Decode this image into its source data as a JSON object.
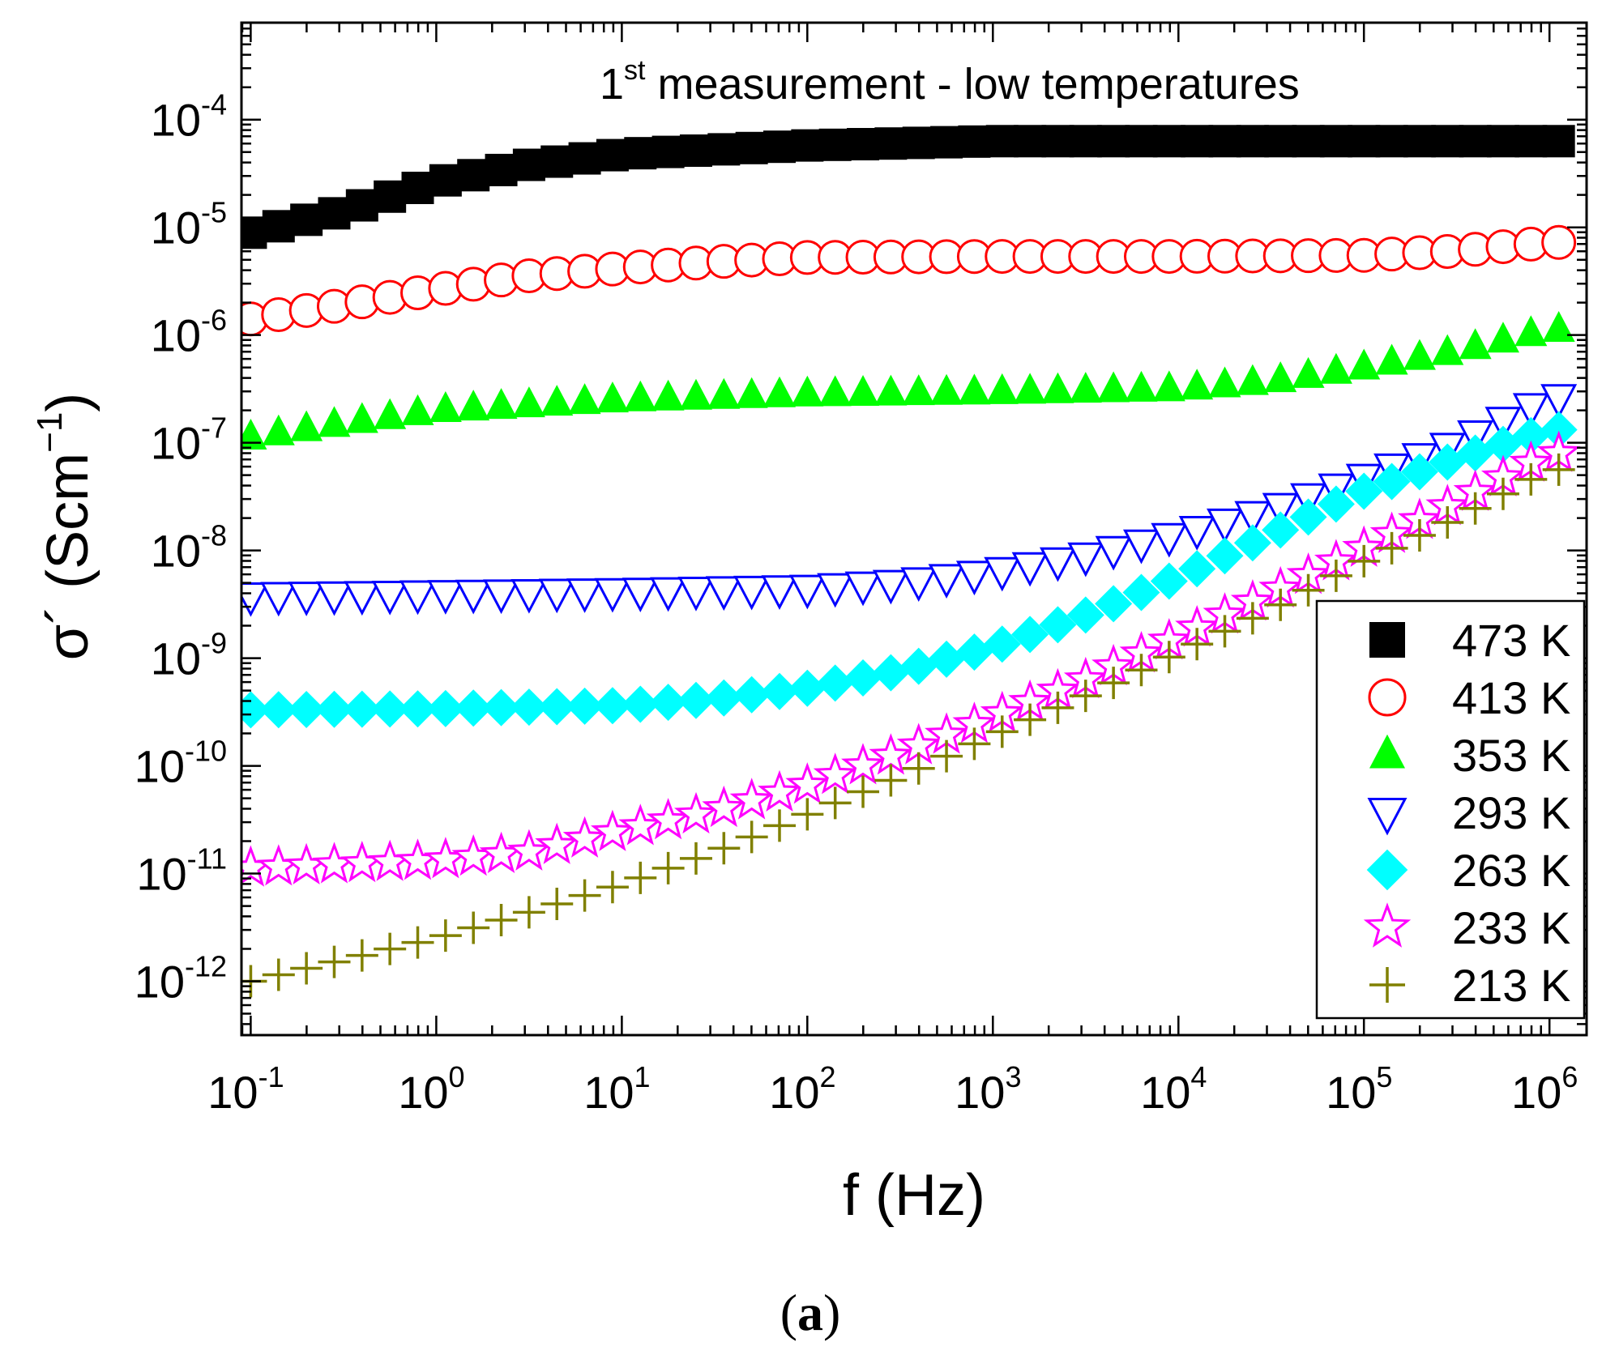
{
  "chart_data": {
    "type": "scatter",
    "title": "1st measurement - low temperatures",
    "title_main": "1",
    "title_sup": "st",
    "title_rest": " measurement - low temperatures",
    "xlabel": "f (Hz)",
    "ylabel_main": "σ´ (Scm",
    "ylabel_sup": "−1",
    "ylabel_close": ")",
    "x_scale": "log",
    "y_scale": "log",
    "xlim_log10": [
      -1.05,
      6.2
    ],
    "ylim_log10": [
      -12.5,
      -3.1
    ],
    "x_ticks": [
      {
        "exp": -1,
        "base": "10",
        "sup": "-1"
      },
      {
        "exp": 0,
        "base": "10",
        "sup": "0"
      },
      {
        "exp": 1,
        "base": "10",
        "sup": "1"
      },
      {
        "exp": 2,
        "base": "10",
        "sup": "2"
      },
      {
        "exp": 3,
        "base": "10",
        "sup": "3"
      },
      {
        "exp": 4,
        "base": "10",
        "sup": "4"
      },
      {
        "exp": 5,
        "base": "10",
        "sup": "5"
      },
      {
        "exp": 6,
        "base": "10",
        "sup": "6"
      }
    ],
    "y_ticks": [
      {
        "exp": -12,
        "base": "10",
        "sup": "-12"
      },
      {
        "exp": -11,
        "base": "10",
        "sup": "-11"
      },
      {
        "exp": -10,
        "base": "10",
        "sup": "-10"
      },
      {
        "exp": -9,
        "base": "10",
        "sup": "-9"
      },
      {
        "exp": -8,
        "base": "10",
        "sup": "-8"
      },
      {
        "exp": -7,
        "base": "10",
        "sup": "-7"
      },
      {
        "exp": -6,
        "base": "10",
        "sup": "-6"
      },
      {
        "exp": -5,
        "base": "10",
        "sup": "-5"
      },
      {
        "exp": -4,
        "base": "10",
        "sup": "-4"
      }
    ],
    "legend_position": "bottom-right",
    "x_log_start": -1.0,
    "x_log_step": 0.15,
    "series": [
      {
        "name": "473 K",
        "marker": "square-filled",
        "color": "#000000",
        "knots": [
          [
            -1,
            -5.05
          ],
          [
            -0.5,
            -4.85
          ],
          [
            0,
            -4.58
          ],
          [
            0.5,
            -4.42
          ],
          [
            1,
            -4.32
          ],
          [
            2,
            -4.24
          ],
          [
            3,
            -4.2
          ],
          [
            4,
            -4.2
          ],
          [
            5,
            -4.2
          ],
          [
            6,
            -4.2
          ]
        ]
      },
      {
        "name": "413 K",
        "marker": "circle-open",
        "color": "#ff0000",
        "knots": [
          [
            -1,
            -5.85
          ],
          [
            -0.5,
            -5.72
          ],
          [
            0,
            -5.58
          ],
          [
            0.5,
            -5.45
          ],
          [
            1,
            -5.38
          ],
          [
            1.5,
            -5.32
          ],
          [
            2,
            -5.28
          ],
          [
            3,
            -5.27
          ],
          [
            4,
            -5.27
          ],
          [
            5,
            -5.26
          ],
          [
            5.5,
            -5.22
          ],
          [
            6,
            -5.14
          ]
        ]
      },
      {
        "name": "353 K",
        "marker": "triangle-up-filled",
        "color": "#00ff00",
        "knots": [
          [
            -1,
            -6.95
          ],
          [
            -0.5,
            -6.82
          ],
          [
            0,
            -6.7
          ],
          [
            1,
            -6.6
          ],
          [
            2,
            -6.55
          ],
          [
            3,
            -6.53
          ],
          [
            4,
            -6.5
          ],
          [
            4.5,
            -6.43
          ],
          [
            5,
            -6.3
          ],
          [
            5.5,
            -6.15
          ],
          [
            6,
            -5.95
          ]
        ]
      },
      {
        "name": "293 K",
        "marker": "triangle-down-open",
        "color": "#0000ff",
        "knots": [
          [
            -1,
            -8.42
          ],
          [
            0,
            -8.4
          ],
          [
            1,
            -8.38
          ],
          [
            2,
            -8.35
          ],
          [
            2.5,
            -8.3
          ],
          [
            3,
            -8.2
          ],
          [
            3.5,
            -8.05
          ],
          [
            4,
            -7.85
          ],
          [
            4.5,
            -7.62
          ],
          [
            5,
            -7.32
          ],
          [
            5.5,
            -7.0
          ],
          [
            6,
            -6.58
          ]
        ]
      },
      {
        "name": "263 K",
        "marker": "diamond-filled",
        "color": "#00ffff",
        "knots": [
          [
            -1,
            -9.48
          ],
          [
            0,
            -9.47
          ],
          [
            1,
            -9.44
          ],
          [
            1.5,
            -9.38
          ],
          [
            2,
            -9.28
          ],
          [
            2.5,
            -9.12
          ],
          [
            3,
            -8.9
          ],
          [
            3.5,
            -8.6
          ],
          [
            4,
            -8.25
          ],
          [
            4.5,
            -7.85
          ],
          [
            5,
            -7.45
          ],
          [
            5.5,
            -7.15
          ],
          [
            6,
            -6.88
          ]
        ]
      },
      {
        "name": "233 K",
        "marker": "star-open",
        "color": "#ff00ff",
        "knots": [
          [
            -1,
            -10.95
          ],
          [
            0,
            -10.88
          ],
          [
            0.5,
            -10.8
          ],
          [
            1,
            -10.6
          ],
          [
            1.5,
            -10.42
          ],
          [
            2,
            -10.18
          ],
          [
            2.5,
            -9.88
          ],
          [
            3,
            -9.55
          ],
          [
            3.5,
            -9.2
          ],
          [
            4,
            -8.8
          ],
          [
            4.5,
            -8.4
          ],
          [
            5,
            -7.98
          ],
          [
            5.5,
            -7.55
          ],
          [
            6,
            -7.1
          ]
        ]
      },
      {
        "name": "213 K",
        "marker": "plus",
        "color": "#808000",
        "knots": [
          [
            -1,
            -12.0
          ],
          [
            0,
            -11.6
          ],
          [
            0.5,
            -11.36
          ],
          [
            1,
            -11.1
          ],
          [
            1.5,
            -10.8
          ],
          [
            2,
            -10.45
          ],
          [
            2.5,
            -10.1
          ],
          [
            3,
            -9.72
          ],
          [
            3.5,
            -9.35
          ],
          [
            4,
            -8.95
          ],
          [
            4.5,
            -8.55
          ],
          [
            5,
            -8.1
          ],
          [
            5.5,
            -7.7
          ],
          [
            6,
            -7.25
          ]
        ]
      }
    ]
  },
  "panel_label": "(a)",
  "panel_label_letter": "a"
}
